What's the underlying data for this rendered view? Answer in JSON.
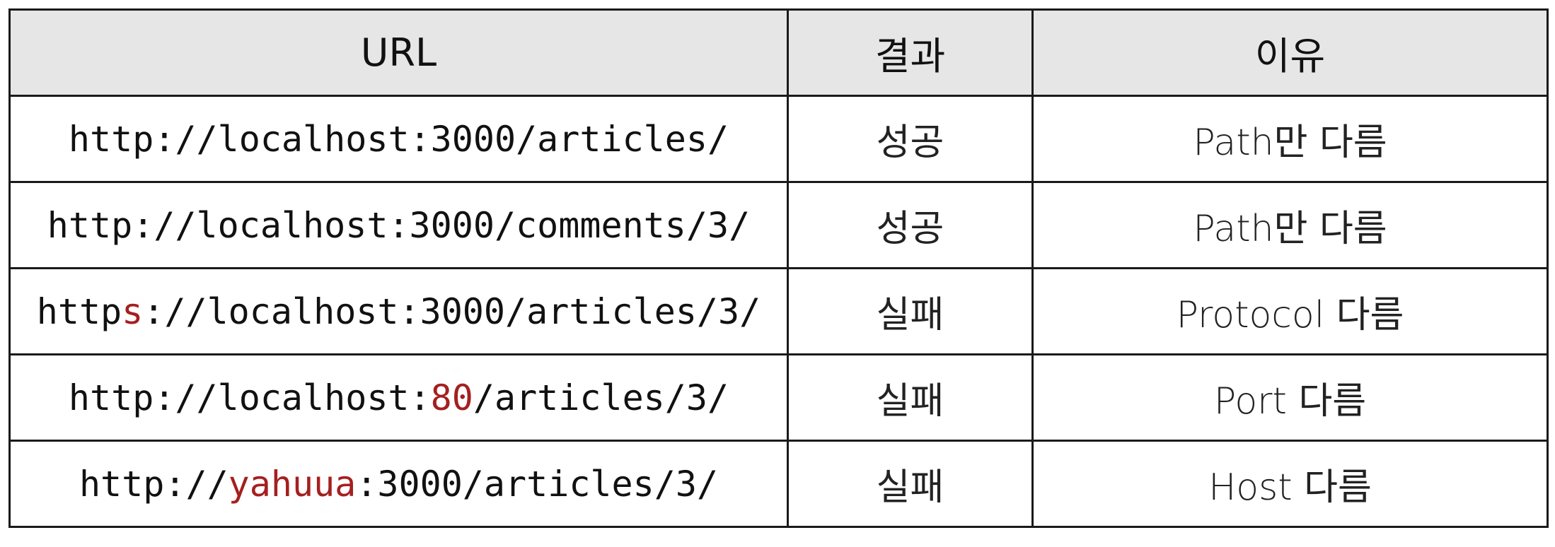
{
  "headers": {
    "url": "URL",
    "result": "결과",
    "reason": "이유"
  },
  "highlight_color": "#a51f1f",
  "rows": [
    {
      "url": {
        "before": "http://localhost:3000/articles/",
        "highlight": "",
        "after": ""
      },
      "result": "성공",
      "reason": "Path만 다름"
    },
    {
      "url": {
        "before": "http://localhost:3000/comments/3/",
        "highlight": "",
        "after": ""
      },
      "result": "성공",
      "reason": "Path만 다름"
    },
    {
      "url": {
        "before": "http",
        "highlight": "s",
        "after": "://localhost:3000/articles/3/"
      },
      "result": "실패",
      "reason": "Protocol 다름"
    },
    {
      "url": {
        "before": "http://localhost:",
        "highlight": "80",
        "after": "/articles/3/"
      },
      "result": "실패",
      "reason": "Port 다름"
    },
    {
      "url": {
        "before": "http://",
        "highlight": "yahuua",
        "after": ":3000/articles/3/"
      },
      "result": "실패",
      "reason": "Host 다름"
    }
  ]
}
